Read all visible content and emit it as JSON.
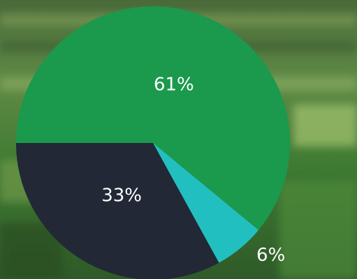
{
  "chart_data": {
    "type": "pie",
    "values": [
      61,
      6,
      33
    ],
    "value_labels": [
      "61%",
      "6%",
      "33%"
    ],
    "colors": [
      "#1b994d",
      "#22bfc1",
      "#222836"
    ]
  }
}
